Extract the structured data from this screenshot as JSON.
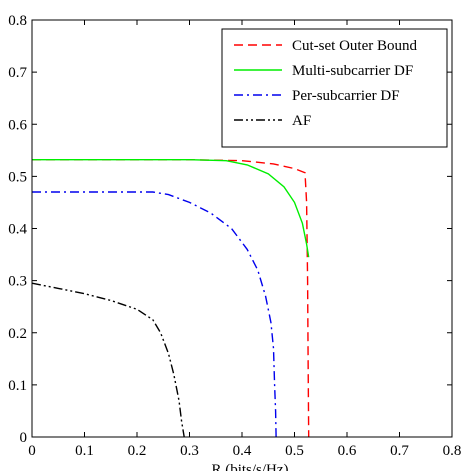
{
  "chart_data": {
    "type": "line",
    "title": "",
    "xlabel": "R",
    "xlabel_suffix": " (bits/s/Hz)",
    "ylabel": "",
    "xlim": [
      0,
      0.8
    ],
    "ylim": [
      0,
      0.8
    ],
    "xticks": [
      0,
      0.1,
      0.2,
      0.3,
      0.4,
      0.5,
      0.6,
      0.7,
      0.8
    ],
    "yticks": [
      0,
      0.1,
      0.2,
      0.3,
      0.4,
      0.5,
      0.6,
      0.7,
      0.8
    ],
    "xtick_labels": [
      "0",
      "0.1",
      "0.2",
      "0.3",
      "0.4",
      "0.5",
      "0.6",
      "0.7",
      "0.8"
    ],
    "ytick_labels": [
      "0",
      "0.1",
      "0.2",
      "0.3",
      "0.4",
      "0.5",
      "0.6",
      "0.7",
      "0.8"
    ],
    "grid": false,
    "legend_position": "top-right",
    "series": [
      {
        "name": "Cut-set Outer Bound",
        "color": "#ff0000",
        "style": "dashed",
        "points": [
          [
            0,
            0.532
          ],
          [
            0.3,
            0.532
          ],
          [
            0.4,
            0.53
          ],
          [
            0.46,
            0.524
          ],
          [
            0.5,
            0.515
          ],
          [
            0.52,
            0.507
          ],
          [
            0.523,
            0.45
          ],
          [
            0.525,
            0.3
          ],
          [
            0.526,
            0.15
          ],
          [
            0.527,
            0
          ]
        ]
      },
      {
        "name": "Multi-subcarrier DF",
        "color": "#00ee00",
        "style": "solid",
        "points": [
          [
            0,
            0.532
          ],
          [
            0.3,
            0.532
          ],
          [
            0.37,
            0.53
          ],
          [
            0.41,
            0.522
          ],
          [
            0.45,
            0.505
          ],
          [
            0.48,
            0.48
          ],
          [
            0.5,
            0.45
          ],
          [
            0.515,
            0.41
          ],
          [
            0.523,
            0.37
          ],
          [
            0.527,
            0.345
          ]
        ]
      },
      {
        "name": "Per-subcarrier DF",
        "color": "#0000ee",
        "style": "dashdot",
        "points": [
          [
            0,
            0.47
          ],
          [
            0.23,
            0.47
          ],
          [
            0.26,
            0.465
          ],
          [
            0.3,
            0.45
          ],
          [
            0.34,
            0.43
          ],
          [
            0.38,
            0.4
          ],
          [
            0.41,
            0.36
          ],
          [
            0.43,
            0.32
          ],
          [
            0.445,
            0.27
          ],
          [
            0.455,
            0.22
          ],
          [
            0.46,
            0.17
          ],
          [
            0.462,
            0.1
          ],
          [
            0.464,
            0.05
          ],
          [
            0.465,
            0
          ]
        ]
      },
      {
        "name": "AF",
        "color": "#000000",
        "style": "dashdotdot",
        "points": [
          [
            0,
            0.295
          ],
          [
            0.05,
            0.285
          ],
          [
            0.1,
            0.275
          ],
          [
            0.15,
            0.262
          ],
          [
            0.2,
            0.245
          ],
          [
            0.23,
            0.225
          ],
          [
            0.245,
            0.2
          ],
          [
            0.26,
            0.16
          ],
          [
            0.27,
            0.12
          ],
          [
            0.28,
            0.07
          ],
          [
            0.285,
            0.03
          ],
          [
            0.29,
            0
          ]
        ]
      }
    ]
  }
}
